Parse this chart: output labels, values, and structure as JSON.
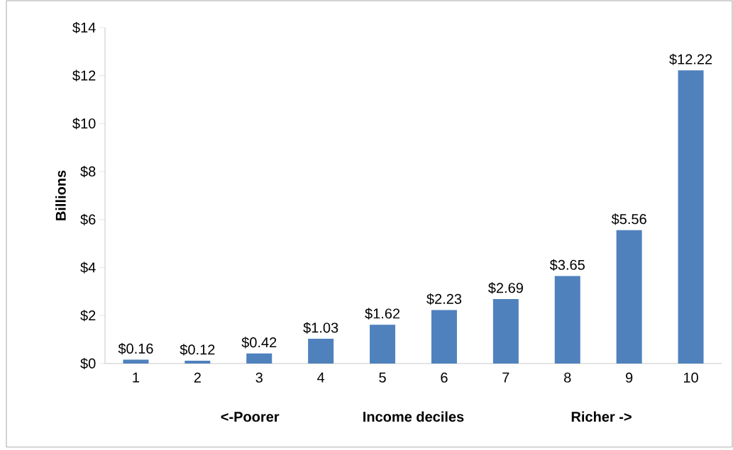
{
  "chart_data": {
    "type": "bar",
    "xlabel": "Income deciles",
    "ylabel": "Billions",
    "categories": [
      "1",
      "2",
      "3",
      "4",
      "5",
      "6",
      "7",
      "8",
      "9",
      "10"
    ],
    "values": [
      0.16,
      0.12,
      0.42,
      1.03,
      1.62,
      2.23,
      2.69,
      3.65,
      5.56,
      12.22
    ],
    "value_labels": [
      "$0.16",
      "$0.12",
      "$0.42",
      "$1.03",
      "$1.62",
      "$2.23",
      "$2.69",
      "$3.65",
      "$5.56",
      "$12.22"
    ],
    "color": "#4f81bd",
    "ylim": [
      0,
      14
    ],
    "yticks": [
      {
        "value": 0,
        "label": "$0"
      },
      {
        "value": 2,
        "label": "$2"
      },
      {
        "value": 4,
        "label": "$4"
      },
      {
        "value": 6,
        "label": "$6"
      },
      {
        "value": 8,
        "label": "$8"
      },
      {
        "value": 10,
        "label": "$10"
      },
      {
        "value": 12,
        "label": "$12"
      },
      {
        "value": 14,
        "label": "$14"
      }
    ],
    "annotations": [
      "<-Poorer",
      "Richer ->"
    ],
    "grid": false
  }
}
